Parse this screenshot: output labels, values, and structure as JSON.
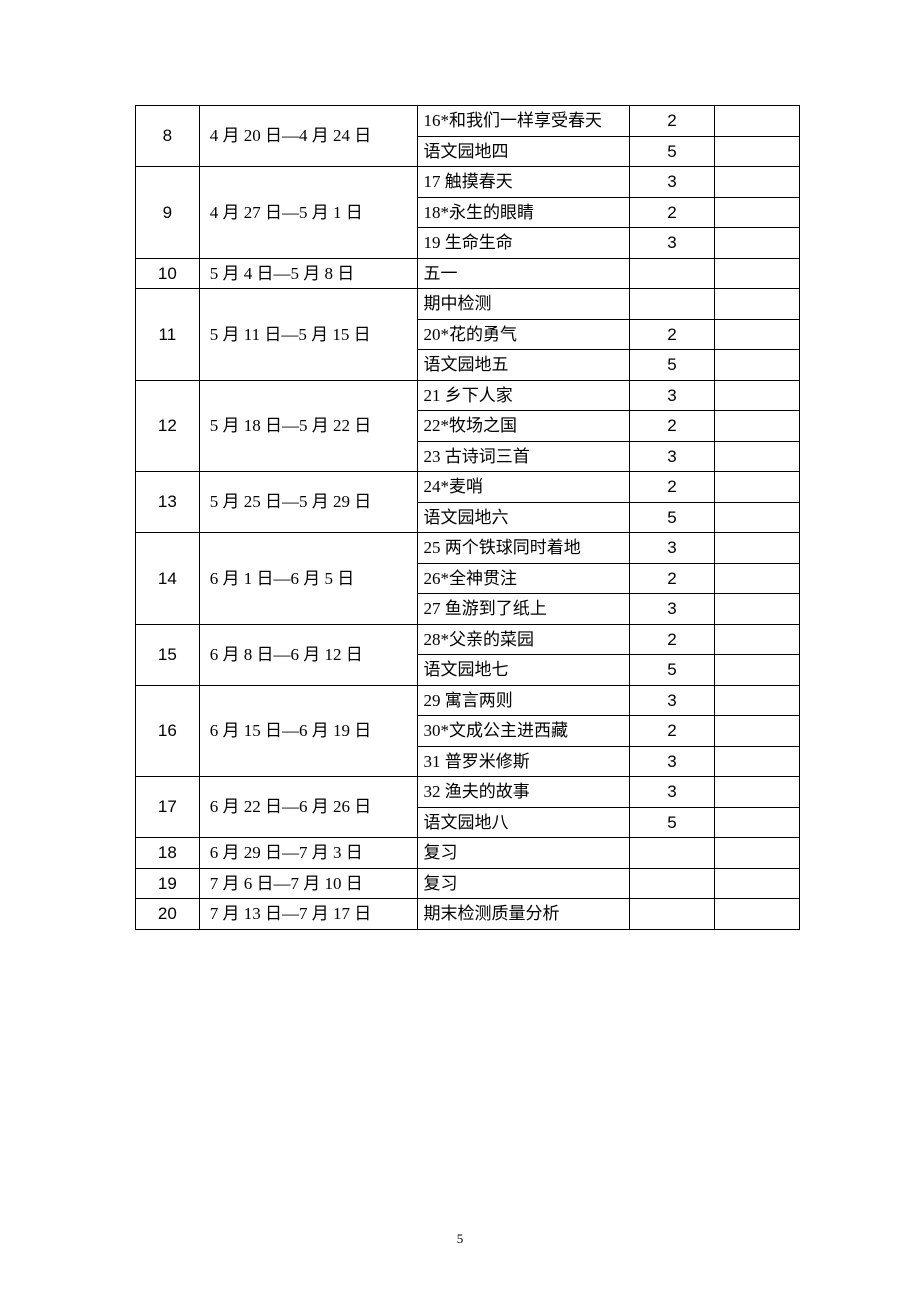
{
  "page_number": "5",
  "style": {
    "border_color": "#000000",
    "cell_font_size": 17,
    "cell_font_family": "SimSun",
    "number_font_family": "Arial",
    "background": "#ffffff"
  },
  "columns": {
    "week_width": 60,
    "date_width": 205,
    "content_width": 200,
    "hours_width": 80,
    "note_width": 80
  },
  "groups": [
    {
      "week": "8",
      "date": "4 月 20 日—4 月 24 日",
      "rows": [
        {
          "content": "16*和我们一样享受春天",
          "hours": "2"
        },
        {
          "content": "语文园地四",
          "hours": "5"
        }
      ]
    },
    {
      "week": "9",
      "date": "4 月 27 日—5 月 1 日",
      "rows": [
        {
          "content": "17 触摸春天",
          "hours": "3"
        },
        {
          "content": "18*永生的眼睛",
          "hours": "2"
        },
        {
          "content": "19 生命生命",
          "hours": "3"
        }
      ]
    },
    {
      "week": "10",
      "date": "5 月 4 日—5 月 8 日",
      "rows": [
        {
          "content": "五一",
          "hours": ""
        }
      ]
    },
    {
      "week": "11",
      "date": "5 月 11 日—5 月 15 日",
      "rows": [
        {
          "content": "期中检测",
          "hours": ""
        },
        {
          "content": "20*花的勇气",
          "hours": "2"
        },
        {
          "content": "语文园地五",
          "hours": "5"
        }
      ]
    },
    {
      "week": "12",
      "date": "5 月 18 日—5 月 22 日",
      "rows": [
        {
          "content": "21 乡下人家",
          "hours": "3"
        },
        {
          "content": "22*牧场之国",
          "hours": "2"
        },
        {
          "content": "23 古诗词三首",
          "hours": "3"
        }
      ]
    },
    {
      "week": "13",
      "date": "5 月 25 日—5 月 29 日",
      "rows": [
        {
          "content": "24*麦哨",
          "hours": "2"
        },
        {
          "content": "语文园地六",
          "hours": "5"
        }
      ]
    },
    {
      "week": "14",
      "date": "6 月 1 日—6 月 5 日",
      "rows": [
        {
          "content": "25 两个铁球同时着地",
          "hours": "3"
        },
        {
          "content": "26*全神贯注",
          "hours": "2"
        },
        {
          "content": "27 鱼游到了纸上",
          "hours": "3"
        }
      ]
    },
    {
      "week": "15",
      "date": "6 月 8 日—6 月 12 日",
      "rows": [
        {
          "content": "28*父亲的菜园",
          "hours": "2"
        },
        {
          "content": "语文园地七",
          "hours": "5"
        }
      ]
    },
    {
      "week": "16",
      "date": "6 月 15 日—6 月 19 日",
      "rows": [
        {
          "content": "29 寓言两则",
          "hours": "3"
        },
        {
          "content": "30*文成公主进西藏",
          "hours": "2"
        },
        {
          "content": "31 普罗米修斯",
          "hours": "3"
        }
      ]
    },
    {
      "week": "17",
      "date": "6 月 22 日—6 月 26 日",
      "rows": [
        {
          "content": "32 渔夫的故事",
          "hours": "3"
        },
        {
          "content": "语文园地八",
          "hours": "5"
        }
      ]
    },
    {
      "week": "18",
      "date": "6 月 29 日—7 月 3 日",
      "rows": [
        {
          "content": "复习",
          "hours": ""
        }
      ]
    },
    {
      "week": "19",
      "date": "7 月 6 日—7 月 10 日",
      "rows": [
        {
          "content": "复习",
          "hours": ""
        }
      ]
    },
    {
      "week": "20",
      "date": "7 月 13 日—7 月 17 日",
      "rows": [
        {
          "content": "期末检测质量分析",
          "hours": ""
        }
      ]
    }
  ]
}
